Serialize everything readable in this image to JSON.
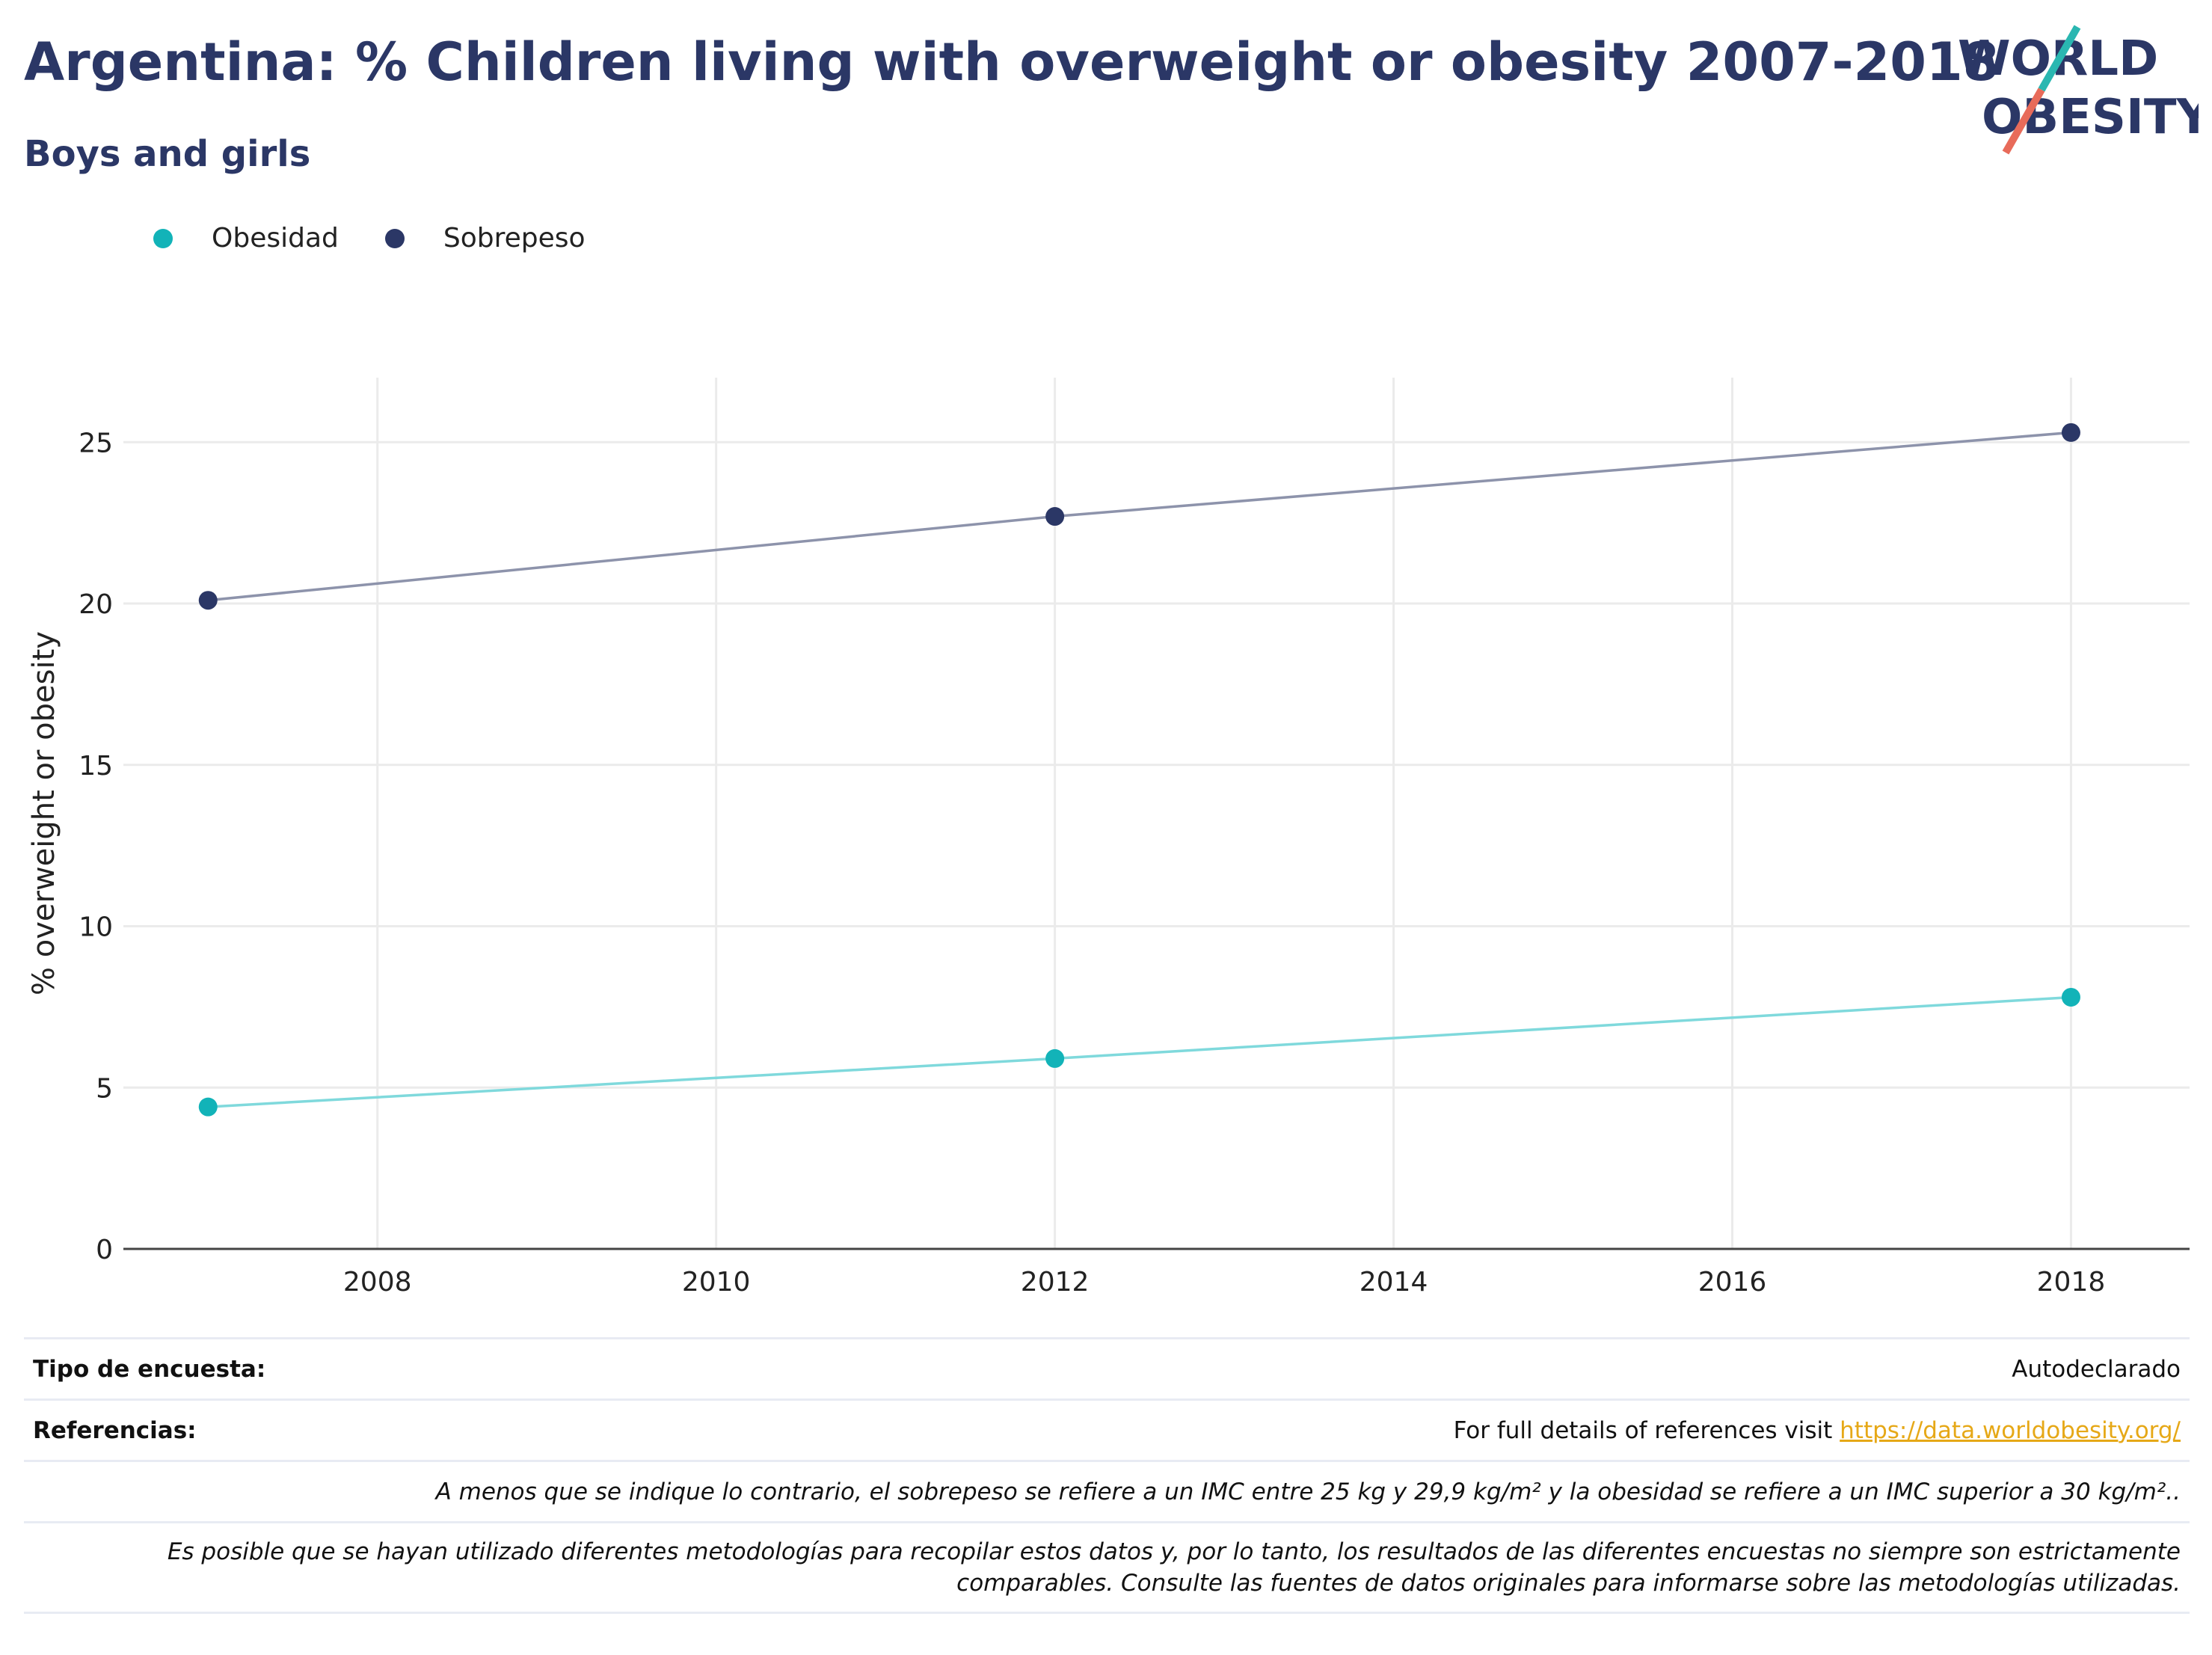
{
  "header": {
    "title": "Argentina: % Children living with overweight or obesity 2007-2018",
    "subtitle": "Boys and girls",
    "logo_text_line1": "WORLD",
    "logo_text_line2": "OBESITY"
  },
  "legend": [
    {
      "label": "Obesidad",
      "color": "#12b3b8"
    },
    {
      "label": "Sobrepeso",
      "color": "#2b3766"
    }
  ],
  "chart_data": {
    "type": "line",
    "title": "",
    "xlabel": "",
    "ylabel": "% overweight or obesity",
    "xlim": [
      2006.5,
      2018.7
    ],
    "ylim": [
      0,
      27
    ],
    "x_ticks": [
      2008,
      2010,
      2012,
      2014,
      2016,
      2018
    ],
    "y_ticks": [
      0,
      5,
      10,
      15,
      20,
      25
    ],
    "grid": true,
    "legend_position": "top-left",
    "series": [
      {
        "name": "Obesidad",
        "color": "#12b3b8",
        "line_color": "#7fd9dc",
        "x": [
          2007,
          2012,
          2018
        ],
        "y": [
          4.4,
          5.9,
          7.8
        ]
      },
      {
        "name": "Sobrepeso",
        "color": "#2b3766",
        "line_color": "#8d93ab",
        "x": [
          2007,
          2012,
          2018
        ],
        "y": [
          20.1,
          22.7,
          25.3
        ]
      }
    ]
  },
  "footer": {
    "survey_label": "Tipo de encuesta:",
    "survey_value": "Autodeclarado",
    "references_label": "Referencias:",
    "references_text": "For full details of references visit",
    "references_link": "https://data.worldobesity.org/",
    "note1": "A menos que se indique lo contrario, el sobrepeso se refiere a un IMC entre 25 kg y 29,9 kg/m² y la obesidad se refiere a un IMC superior a 30 kg/m²..",
    "note2_line1": "Es posible que se hayan utilizado diferentes metodologías para recopilar estos datos y, por lo tanto, los resultados de las diferentes encuestas no siempre son estrictamente",
    "note2_line2": "comparables. Consulte las fuentes de datos originales para informarse sobre las metodologías utilizadas."
  }
}
